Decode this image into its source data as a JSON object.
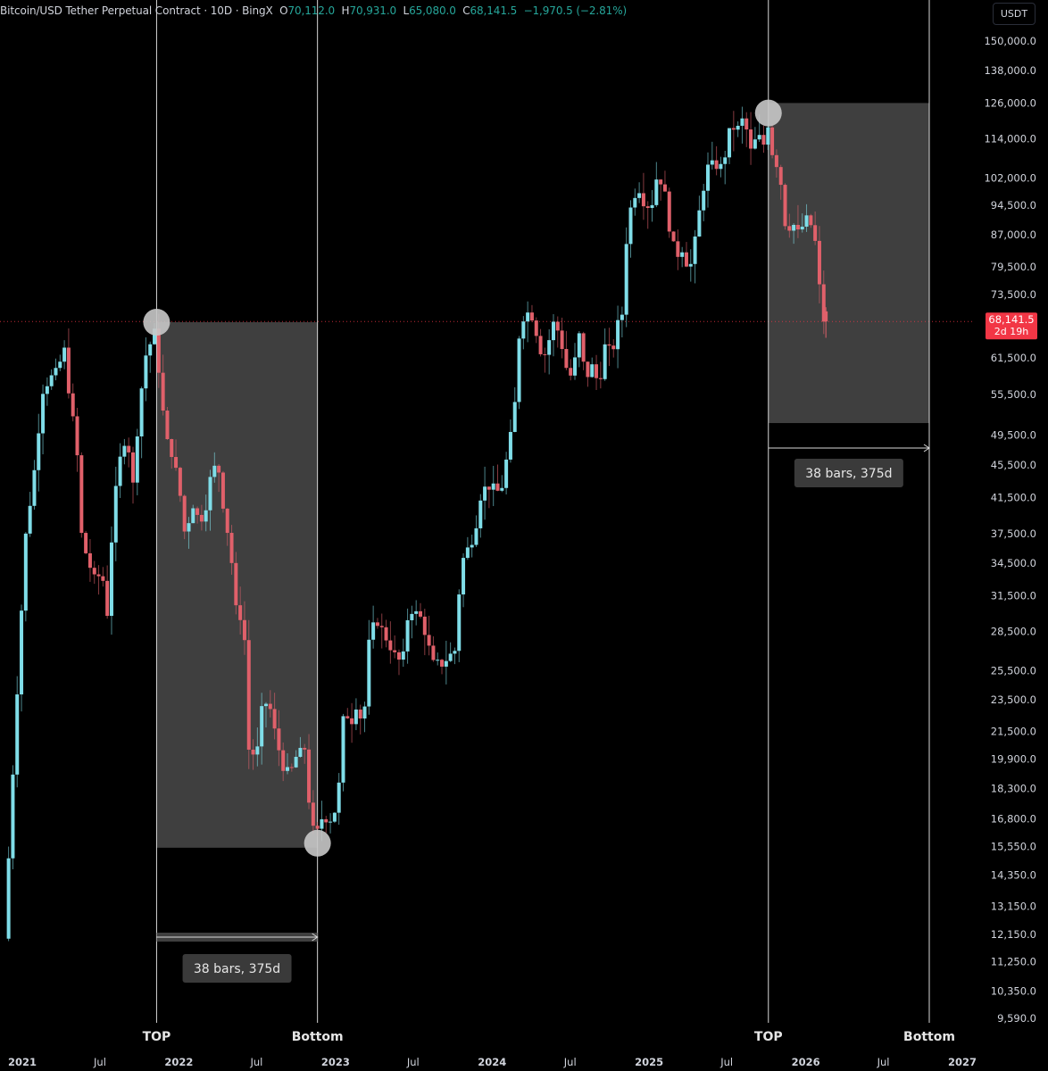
{
  "header": {
    "symbol": "Bitcoin/USD Tether Perpetual Contract · 10D · BingX",
    "o_label": "O",
    "o": "70,112.0",
    "h_label": "H",
    "h": "70,931.0",
    "l_label": "L",
    "l": "65,080.0",
    "c_label": "C",
    "c": "68,141.5",
    "change": "−1,970.5 (−2.81%)"
  },
  "currency": "USDT",
  "colors": {
    "background": "#000000",
    "up": "#7fdde8",
    "down": "#e0606a",
    "box": "#4a4a4a",
    "price_tag": "#f23645",
    "text": "#d1d4dc"
  },
  "price_tag": {
    "price": "68,141.5",
    "countdown": "2d 19h",
    "value": 68141.5
  },
  "chart_data": {
    "type": "candlestick",
    "y_scale": "log",
    "y_ticks": [
      150000,
      138000,
      126000,
      114000,
      102000,
      94500,
      87000,
      79500,
      73500,
      61500,
      55500,
      49500,
      45500,
      41500,
      37500,
      34500,
      31500,
      28500,
      25500,
      23500,
      21500,
      19900,
      18300,
      16800,
      15550,
      14350,
      13150,
      12150,
      11250,
      10350,
      9590
    ],
    "y_tick_labels": [
      "150,000.0",
      "138,000.0",
      "126,000.0",
      "114,000.0",
      "102,000.0",
      "94,500.0",
      "87,000.0",
      "79,500.0",
      "73,500.0",
      "61,500.0",
      "55,500.0",
      "49,500.0",
      "45,500.0",
      "41,500.0",
      "37,500.0",
      "34,500.0",
      "31,500.0",
      "28,500.0",
      "25,500.0",
      "23,500.0",
      "21,500.0",
      "19,900.0",
      "18,300.0",
      "16,800.0",
      "15,550.0",
      "14,350.0",
      "13,150.0",
      "12,150.0",
      "11,250.0",
      "10,350.0",
      "9,590.0"
    ],
    "x_ticks": [
      {
        "label": "2021",
        "date": "2021-01-01"
      },
      {
        "label": "Jul",
        "date": "2021-07-01"
      },
      {
        "label": "2022",
        "date": "2022-01-01"
      },
      {
        "label": "Jul",
        "date": "2022-07-01"
      },
      {
        "label": "2023",
        "date": "2023-01-01"
      },
      {
        "label": "Jul",
        "date": "2023-07-01"
      },
      {
        "label": "2024",
        "date": "2024-01-01"
      },
      {
        "label": "Jul",
        "date": "2024-07-01"
      },
      {
        "label": "2025",
        "date": "2025-01-01"
      },
      {
        "label": "Jul",
        "date": "2025-07-01"
      },
      {
        "label": "2026",
        "date": "2026-01-01"
      },
      {
        "label": "Jul",
        "date": "2026-07-01"
      },
      {
        "label": "2027",
        "date": "2027-01-01"
      }
    ],
    "price_path": [
      [
        "2020-11-25",
        12000
      ],
      [
        "2020-12-10",
        17500
      ],
      [
        "2020-12-28",
        26500
      ],
      [
        "2021-01-12",
        37000
      ],
      [
        "2021-02-05",
        46000
      ],
      [
        "2021-02-20",
        56000
      ],
      [
        "2021-03-10",
        58000
      ],
      [
        "2021-03-25",
        59000
      ],
      [
        "2021-04-14",
        63000
      ],
      [
        "2021-04-25",
        55000
      ],
      [
        "2021-05-12",
        48000
      ],
      [
        "2021-05-20",
        38000
      ],
      [
        "2021-06-05",
        35000
      ],
      [
        "2021-06-22",
        33000
      ],
      [
        "2021-07-10",
        33500
      ],
      [
        "2021-07-22",
        30000
      ],
      [
        "2021-08-05",
        40000
      ],
      [
        "2021-08-20",
        46000
      ],
      [
        "2021-09-05",
        50000
      ],
      [
        "2021-09-20",
        43000
      ],
      [
        "2021-10-05",
        54000
      ],
      [
        "2021-10-20",
        62000
      ],
      [
        "2021-11-09",
        66000
      ],
      [
        "2021-11-20",
        59000
      ],
      [
        "2021-12-05",
        49000
      ],
      [
        "2021-12-20",
        47000
      ],
      [
        "2022-01-05",
        43000
      ],
      [
        "2022-01-20",
        37000
      ],
      [
        "2022-02-05",
        41000
      ],
      [
        "2022-02-20",
        39000
      ],
      [
        "2022-03-05",
        39500
      ],
      [
        "2022-03-20",
        44000
      ],
      [
        "2022-04-05",
        46000
      ],
      [
        "2022-04-20",
        40000
      ],
      [
        "2022-05-05",
        36000
      ],
      [
        "2022-05-20",
        29500
      ],
      [
        "2022-06-05",
        30000
      ],
      [
        "2022-06-15",
        20500
      ],
      [
        "2022-07-05",
        20000
      ],
      [
        "2022-07-20",
        23500
      ],
      [
        "2022-08-05",
        23000
      ],
      [
        "2022-08-20",
        21000
      ],
      [
        "2022-09-05",
        19500
      ],
      [
        "2022-09-20",
        19000
      ],
      [
        "2022-10-05",
        20000
      ],
      [
        "2022-10-25",
        20500
      ],
      [
        "2022-11-09",
        16500
      ],
      [
        "2022-11-21",
        16000
      ],
      [
        "2022-12-05",
        16900
      ],
      [
        "2022-12-25",
        16800
      ],
      [
        "2023-01-10",
        17500
      ],
      [
        "2023-01-25",
        23000
      ],
      [
        "2023-02-10",
        22000
      ],
      [
        "2023-02-25",
        23500
      ],
      [
        "2023-03-10",
        21500
      ],
      [
        "2023-03-25",
        28000
      ],
      [
        "2023-04-10",
        29500
      ],
      [
        "2023-04-25",
        28500
      ],
      [
        "2023-05-10",
        27500
      ],
      [
        "2023-05-25",
        26500
      ],
      [
        "2023-06-10",
        26000
      ],
      [
        "2023-06-25",
        30500
      ],
      [
        "2023-07-10",
        30000
      ],
      [
        "2023-07-25",
        29500
      ],
      [
        "2023-08-20",
        26000
      ],
      [
        "2023-09-10",
        26000
      ],
      [
        "2023-09-25",
        26500
      ],
      [
        "2023-10-10",
        27000
      ],
      [
        "2023-10-25",
        34500
      ],
      [
        "2023-11-10",
        36000
      ],
      [
        "2023-11-25",
        37500
      ],
      [
        "2023-12-10",
        42000
      ],
      [
        "2023-12-25",
        43000
      ],
      [
        "2024-01-10",
        42500
      ],
      [
        "2024-01-25",
        42000
      ],
      [
        "2024-02-10",
        47000
      ],
      [
        "2024-02-25",
        52000
      ],
      [
        "2024-03-10",
        68000
      ],
      [
        "2024-03-25",
        70000
      ],
      [
        "2024-04-10",
        69000
      ],
      [
        "2024-04-25",
        63000
      ],
      [
        "2024-05-10",
        62000
      ],
      [
        "2024-05-25",
        68000
      ],
      [
        "2024-06-10",
        66000
      ],
      [
        "2024-06-25",
        60000
      ],
      [
        "2024-07-10",
        58000
      ],
      [
        "2024-07-25",
        66000
      ],
      [
        "2024-08-10",
        58000
      ],
      [
        "2024-08-25",
        60000
      ],
      [
        "2024-09-10",
        57000
      ],
      [
        "2024-09-25",
        64000
      ],
      [
        "2024-10-10",
        62000
      ],
      [
        "2024-10-25",
        68000
      ],
      [
        "2024-11-05",
        70000
      ],
      [
        "2024-11-15",
        90000
      ],
      [
        "2024-11-28",
        96000
      ],
      [
        "2024-12-10",
        100000
      ],
      [
        "2024-12-25",
        95000
      ],
      [
        "2025-01-10",
        94000
      ],
      [
        "2025-01-25",
        104000
      ],
      [
        "2025-02-10",
        98000
      ],
      [
        "2025-02-25",
        86000
      ],
      [
        "2025-03-10",
        82000
      ],
      [
        "2025-03-25",
        84000
      ],
      [
        "2025-04-08",
        78000
      ],
      [
        "2025-04-20",
        84000
      ],
      [
        "2025-05-05",
        95000
      ],
      [
        "2025-05-20",
        105000
      ],
      [
        "2025-06-05",
        106000
      ],
      [
        "2025-06-25",
        105000
      ],
      [
        "2025-07-14",
        118000
      ],
      [
        "2025-07-30",
        117000
      ],
      [
        "2025-08-14",
        121000
      ],
      [
        "2025-08-30",
        110000
      ],
      [
        "2025-09-15",
        115000
      ],
      [
        "2025-09-30",
        112000
      ],
      [
        "2025-10-06",
        122000
      ],
      [
        "2025-10-18",
        110000
      ],
      [
        "2025-11-05",
        104000
      ],
      [
        "2025-11-20",
        88000
      ],
      [
        "2025-12-05",
        90000
      ],
      [
        "2025-12-20",
        87000
      ],
      [
        "2026-01-05",
        91000
      ],
      [
        "2026-01-20",
        89000
      ],
      [
        "2026-01-31",
        83000
      ],
      [
        "2026-02-10",
        70112
      ],
      [
        "2026-02-17",
        68141.5
      ]
    ],
    "last_candle": {
      "open": 70112.0,
      "high": 70931.0,
      "low": 65080.0,
      "close": 68141.5
    },
    "annotations": [
      {
        "label": "TOP",
        "date": "2021-11-10"
      },
      {
        "label": "Bottom",
        "date": "2022-11-20"
      },
      {
        "label": "TOP",
        "date": "2025-10-06"
      },
      {
        "label": "Bottom",
        "date": "2026-10-16"
      }
    ],
    "measure_boxes": [
      {
        "from_date": "2021-11-10",
        "to_date": "2022-11-20",
        "from_price": 68000,
        "to_price": 15500,
        "label": "38 bars, 375d"
      },
      {
        "from_date": "2025-10-06",
        "to_date": "2026-10-16",
        "from_price": 126000,
        "to_price": 51200,
        "label": "38 bars, 375d"
      }
    ],
    "markers": [
      {
        "date": "2021-11-10",
        "price": 68000
      },
      {
        "date": "2022-11-20",
        "price": 15700
      },
      {
        "date": "2025-10-06",
        "price": 122500
      }
    ]
  }
}
